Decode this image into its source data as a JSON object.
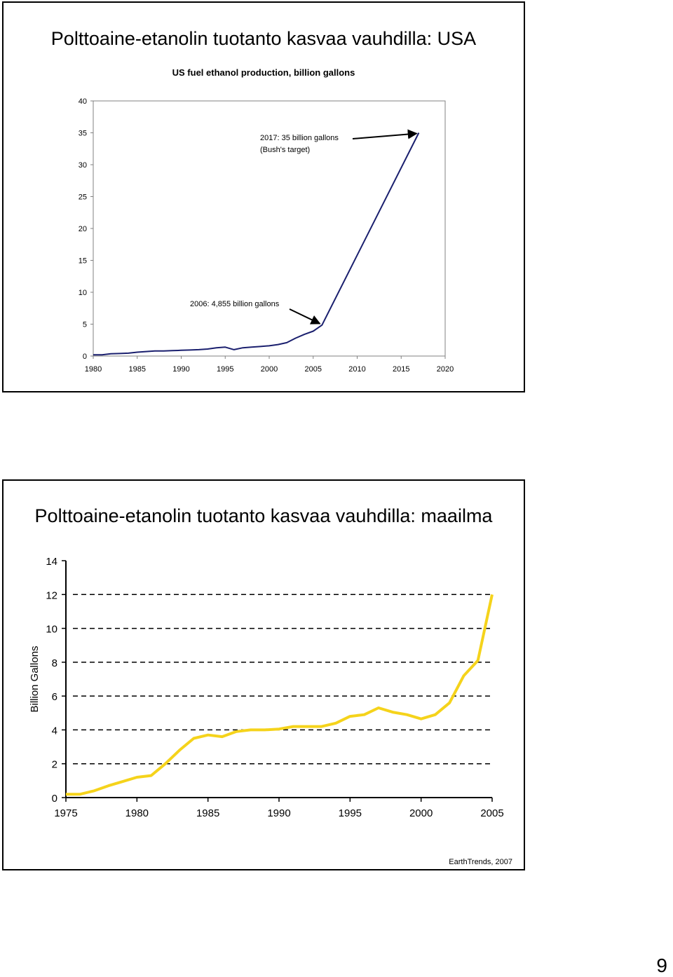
{
  "page_number": "9",
  "slides": {
    "usa": {
      "title": "Polttoaine-etanolin tuotanto kasvaa vauhdilla: USA"
    },
    "world": {
      "title": "Polttoaine-etanolin tuotanto kasvaa vauhdilla: maailma",
      "source": "EarthTrends, 2007"
    }
  },
  "chart_data": [
    {
      "type": "line",
      "title": "US fuel ethanol production, billion gallons",
      "xlabel": "",
      "ylabel": "",
      "xlim": [
        1980,
        2020
      ],
      "ylim": [
        0,
        40
      ],
      "x_ticks": [
        "1980",
        "1985",
        "1990",
        "1995",
        "2000",
        "2005",
        "2010",
        "2015",
        "2020"
      ],
      "y_ticks": [
        "0",
        "5",
        "10",
        "15",
        "20",
        "25",
        "30",
        "35",
        "40"
      ],
      "grid": false,
      "legend": "none",
      "line_color": "#1a1f6e",
      "series": [
        {
          "x": [
            1980,
            1981,
            1982,
            1983,
            1984,
            1985,
            1986,
            1987,
            1988,
            1989,
            1990,
            1991,
            1992,
            1993,
            1994,
            1995,
            1996,
            1997,
            1998,
            1999,
            2000,
            2001,
            2002,
            2003,
            2004,
            2005,
            2006,
            2017
          ],
          "y": [
            0.2,
            0.2,
            0.35,
            0.4,
            0.45,
            0.6,
            0.7,
            0.8,
            0.8,
            0.85,
            0.9,
            0.95,
            1.0,
            1.1,
            1.3,
            1.4,
            1.0,
            1.3,
            1.4,
            1.5,
            1.6,
            1.8,
            2.1,
            2.8,
            3.4,
            3.9,
            4.855,
            35
          ]
        }
      ],
      "annotations": [
        {
          "line1": "2017: 35 billion gallons",
          "line2": "(Bush's target)"
        },
        {
          "line1": "2006: 4,855 billion gallons"
        }
      ]
    },
    {
      "type": "line",
      "title": "",
      "xlabel": "",
      "ylabel": "Billion Gallons",
      "xlim": [
        1975,
        2005
      ],
      "ylim": [
        0,
        14
      ],
      "x_ticks": [
        "1975",
        "1980",
        "1985",
        "1990",
        "1995",
        "2000",
        "2005"
      ],
      "y_ticks": [
        "0",
        "2",
        "4",
        "6",
        "8",
        "10",
        "12",
        "14"
      ],
      "grid": "dashed-horizontal",
      "legend": "none",
      "line_color": "#f5d31b",
      "series": [
        {
          "x": [
            1975,
            1976,
            1977,
            1978,
            1979,
            1980,
            1981,
            1982,
            1983,
            1984,
            1985,
            1986,
            1987,
            1988,
            1989,
            1990,
            1991,
            1992,
            1993,
            1994,
            1995,
            1996,
            1997,
            1998,
            1999,
            2000,
            2001,
            2002,
            2003,
            2004,
            2005
          ],
          "y": [
            0.2,
            0.2,
            0.4,
            0.7,
            0.95,
            1.2,
            1.3,
            2.0,
            2.8,
            3.5,
            3.7,
            3.6,
            3.9,
            4.0,
            4.0,
            4.05,
            4.2,
            4.2,
            4.2,
            4.4,
            4.8,
            4.9,
            5.3,
            5.05,
            4.9,
            4.65,
            4.9,
            5.6,
            7.2,
            8.1,
            12.0
          ]
        }
      ]
    }
  ]
}
